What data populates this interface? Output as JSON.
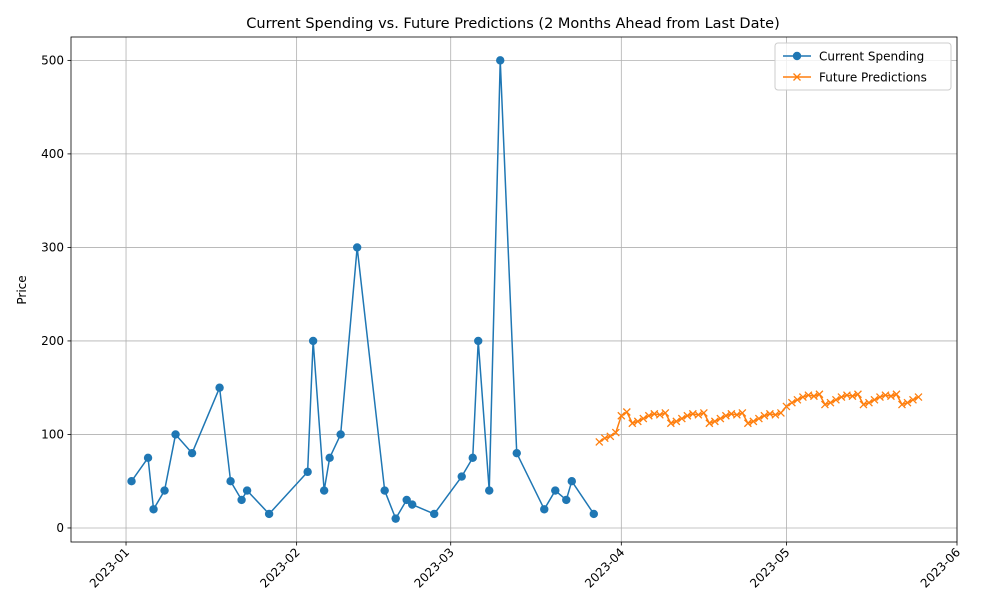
{
  "chart_data": {
    "type": "line",
    "title": "Current Spending vs. Future Predictions (2 Months Ahead from Last Date)",
    "xlabel": "",
    "ylabel": "Price",
    "x_ticks": [
      "2023-01",
      "2023-02",
      "2023-03",
      "2023-04",
      "2023-05",
      "2023-06"
    ],
    "x_tick_dates": [
      "2023-01-01",
      "2023-02-01",
      "2023-03-01",
      "2023-04-01",
      "2023-05-01",
      "2023-06-01"
    ],
    "xlim": [
      "2022-12-22",
      "2023-06-01"
    ],
    "y_ticks": [
      0,
      100,
      200,
      300,
      400,
      500
    ],
    "ylim": [
      -15,
      525
    ],
    "grid": true,
    "legend_position": "top-right",
    "series": [
      {
        "name": "Current Spending",
        "color": "#1f77b4",
        "marker": "circle",
        "points": [
          [
            "2023-01-02",
            50
          ],
          [
            "2023-01-05",
            75
          ],
          [
            "2023-01-06",
            20
          ],
          [
            "2023-01-08",
            40
          ],
          [
            "2023-01-10",
            100
          ],
          [
            "2023-01-13",
            80
          ],
          [
            "2023-01-18",
            150
          ],
          [
            "2023-01-20",
            50
          ],
          [
            "2023-01-22",
            30
          ],
          [
            "2023-01-23",
            40
          ],
          [
            "2023-01-27",
            15
          ],
          [
            "2023-02-03",
            60
          ],
          [
            "2023-02-04",
            200
          ],
          [
            "2023-02-06",
            40
          ],
          [
            "2023-02-07",
            75
          ],
          [
            "2023-02-09",
            100
          ],
          [
            "2023-02-12",
            300
          ],
          [
            "2023-02-17",
            40
          ],
          [
            "2023-02-19",
            10
          ],
          [
            "2023-02-21",
            30
          ],
          [
            "2023-02-22",
            25
          ],
          [
            "2023-02-26",
            15
          ],
          [
            "2023-03-03",
            55
          ],
          [
            "2023-03-05",
            75
          ],
          [
            "2023-03-06",
            200
          ],
          [
            "2023-03-08",
            40
          ],
          [
            "2023-03-10",
            500
          ],
          [
            "2023-03-13",
            80
          ],
          [
            "2023-03-18",
            20
          ],
          [
            "2023-03-20",
            40
          ],
          [
            "2023-03-22",
            30
          ],
          [
            "2023-03-23",
            50
          ],
          [
            "2023-03-27",
            15
          ]
        ]
      },
      {
        "name": "Future Predictions",
        "color": "#ff7f0e",
        "marker": "x",
        "points": [
          [
            "2023-03-28",
            92
          ],
          [
            "2023-03-29",
            96
          ],
          [
            "2023-03-30",
            98
          ],
          [
            "2023-03-31",
            102
          ],
          [
            "2023-04-01",
            120
          ],
          [
            "2023-04-02",
            124
          ],
          [
            "2023-04-03",
            112
          ],
          [
            "2023-04-04",
            114
          ],
          [
            "2023-04-05",
            117
          ],
          [
            "2023-04-06",
            120
          ],
          [
            "2023-04-07",
            122
          ],
          [
            "2023-04-08",
            121
          ],
          [
            "2023-04-09",
            123
          ],
          [
            "2023-04-10",
            112
          ],
          [
            "2023-04-11",
            114
          ],
          [
            "2023-04-12",
            117
          ],
          [
            "2023-04-13",
            120
          ],
          [
            "2023-04-14",
            122
          ],
          [
            "2023-04-15",
            121
          ],
          [
            "2023-04-16",
            123
          ],
          [
            "2023-04-17",
            112
          ],
          [
            "2023-04-18",
            114
          ],
          [
            "2023-04-19",
            117
          ],
          [
            "2023-04-20",
            120
          ],
          [
            "2023-04-21",
            122
          ],
          [
            "2023-04-22",
            121
          ],
          [
            "2023-04-23",
            123
          ],
          [
            "2023-04-24",
            112
          ],
          [
            "2023-04-25",
            114
          ],
          [
            "2023-04-26",
            117
          ],
          [
            "2023-04-27",
            120
          ],
          [
            "2023-04-28",
            122
          ],
          [
            "2023-04-29",
            121
          ],
          [
            "2023-04-30",
            123
          ],
          [
            "2023-05-01",
            130
          ],
          [
            "2023-05-02",
            134
          ],
          [
            "2023-05-03",
            137
          ],
          [
            "2023-05-04",
            140
          ],
          [
            "2023-05-05",
            142
          ],
          [
            "2023-05-06",
            141
          ],
          [
            "2023-05-07",
            143
          ],
          [
            "2023-05-08",
            132
          ],
          [
            "2023-05-09",
            134
          ],
          [
            "2023-05-10",
            137
          ],
          [
            "2023-05-11",
            140
          ],
          [
            "2023-05-12",
            142
          ],
          [
            "2023-05-13",
            141
          ],
          [
            "2023-05-14",
            143
          ],
          [
            "2023-05-15",
            132
          ],
          [
            "2023-05-16",
            134
          ],
          [
            "2023-05-17",
            137
          ],
          [
            "2023-05-18",
            140
          ],
          [
            "2023-05-19",
            142
          ],
          [
            "2023-05-20",
            141
          ],
          [
            "2023-05-21",
            143
          ],
          [
            "2023-05-22",
            132
          ],
          [
            "2023-05-23",
            134
          ],
          [
            "2023-05-24",
            137
          ],
          [
            "2023-05-25",
            140
          ]
        ]
      }
    ]
  }
}
